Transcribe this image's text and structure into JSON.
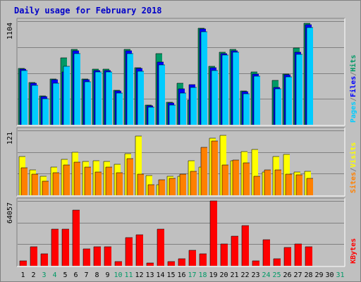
{
  "colors": {
    "background": "#c0c0c0",
    "frame_light": "#ffffff",
    "frame_dark": "#808080",
    "title": "#0000c8",
    "grid": "#808080",
    "hits": "#009966",
    "files": "#0000ff",
    "pages": "#00ccff",
    "visits": "#ffff00",
    "sites": "#ff8000",
    "kbytes": "#ff0000",
    "weekend_label": "#009966",
    "weekday_label": "#000000"
  },
  "chart_data": {
    "type": "bar",
    "title": "Daily usage for February 2018",
    "categories": [
      "1",
      "2",
      "3",
      "4",
      "5",
      "6",
      "7",
      "8",
      "9",
      "10",
      "11",
      "12",
      "13",
      "14",
      "15",
      "16",
      "17",
      "18",
      "19",
      "20",
      "21",
      "22",
      "23",
      "24",
      "25",
      "26",
      "27",
      "28",
      "29",
      "30",
      "31"
    ],
    "weekend_days": [
      "3",
      "4",
      "10",
      "11",
      "17",
      "18",
      "24",
      "25",
      "31"
    ],
    "legend_placement": "right",
    "grid": true,
    "panels": [
      {
        "name": "hits-files-pages",
        "ymax_label": "1104",
        "ylim": [
          0,
          1104
        ],
        "legend": [
          {
            "label": "Pages",
            "color_key": "pages"
          },
          {
            "label": "/",
            "color_key": "grid"
          },
          {
            "label": "Files",
            "color_key": "files"
          },
          {
            "label": "/",
            "color_key": "grid"
          },
          {
            "label": "Hits",
            "color_key": "hits"
          }
        ],
        "series": [
          {
            "name": "Hits",
            "color_key": "hits",
            "values": [
              600,
              450,
              310,
              490,
              710,
              800,
              490,
              590,
              590,
              370,
              800,
              610,
              210,
              760,
              240,
              440,
              260,
              1030,
              620,
              770,
              800,
              360,
              560,
              1,
              470,
              540,
              820,
              1080,
              0,
              0,
              0
            ]
          },
          {
            "name": "Files",
            "color_key": "files",
            "values": [
              590,
              440,
              300,
              480,
              560,
              790,
              480,
              580,
              580,
              360,
              790,
              600,
              200,
              670,
              230,
              380,
              430,
              1020,
              610,
              760,
              790,
              350,
              540,
              1,
              400,
              530,
              770,
              1070,
              0,
              0,
              0
            ]
          },
          {
            "name": "Pages",
            "color_key": "pages",
            "values": [
              580,
              420,
              280,
              440,
              620,
              760,
              460,
              560,
              560,
              340,
              760,
              570,
              190,
              640,
              210,
              340,
              400,
              990,
              580,
              740,
              770,
              330,
              520,
              1,
              380,
              510,
              750,
              1040,
              0,
              0,
              0
            ]
          }
        ]
      },
      {
        "name": "visits-sites",
        "ymax_label": "121",
        "ylim": [
          0,
          121
        ],
        "legend": [
          {
            "label": "Sites",
            "color_key": "sites"
          },
          {
            "label": "/",
            "color_key": "grid"
          },
          {
            "label": "Visits",
            "color_key": "visits"
          }
        ],
        "series": [
          {
            "name": "Visits",
            "color_key": "visits",
            "values": [
              72,
              48,
              35,
              52,
              67,
              80,
              63,
              65,
              63,
              58,
              78,
              110,
              37,
              20,
              36,
              36,
              64,
              52,
              106,
              112,
              65,
              81,
              86,
              43,
              72,
              76,
              43,
              45,
              0,
              0,
              0
            ]
          },
          {
            "name": "Sites",
            "color_key": "sites",
            "values": [
              51,
              39,
              26,
              42,
              56,
              62,
              53,
              43,
              52,
              42,
              68,
              40,
              20,
              29,
              31,
              39,
              45,
              90,
              101,
              57,
              66,
              61,
              35,
              48,
              48,
              40,
              38,
              32,
              0,
              0,
              0
            ]
          }
        ]
      },
      {
        "name": "kbytes",
        "ymax_label": "64057",
        "ylim": [
          0,
          64057
        ],
        "legend": [
          {
            "label": "KBytes",
            "color_key": "kbytes"
          }
        ],
        "series": [
          {
            "name": "KBytes",
            "color_key": "kbytes",
            "values": [
              5000,
              18500,
              12000,
              36500,
              36500,
              55000,
              16500,
              19000,
              19000,
              4500,
              28000,
              30500,
              3000,
              36500,
              4500,
              7000,
              15500,
              11500,
              64057,
              21500,
              29000,
              40000,
              5000,
              25500,
              7000,
              18000,
              21500,
              19000,
              0,
              0,
              0
            ]
          }
        ]
      }
    ]
  }
}
